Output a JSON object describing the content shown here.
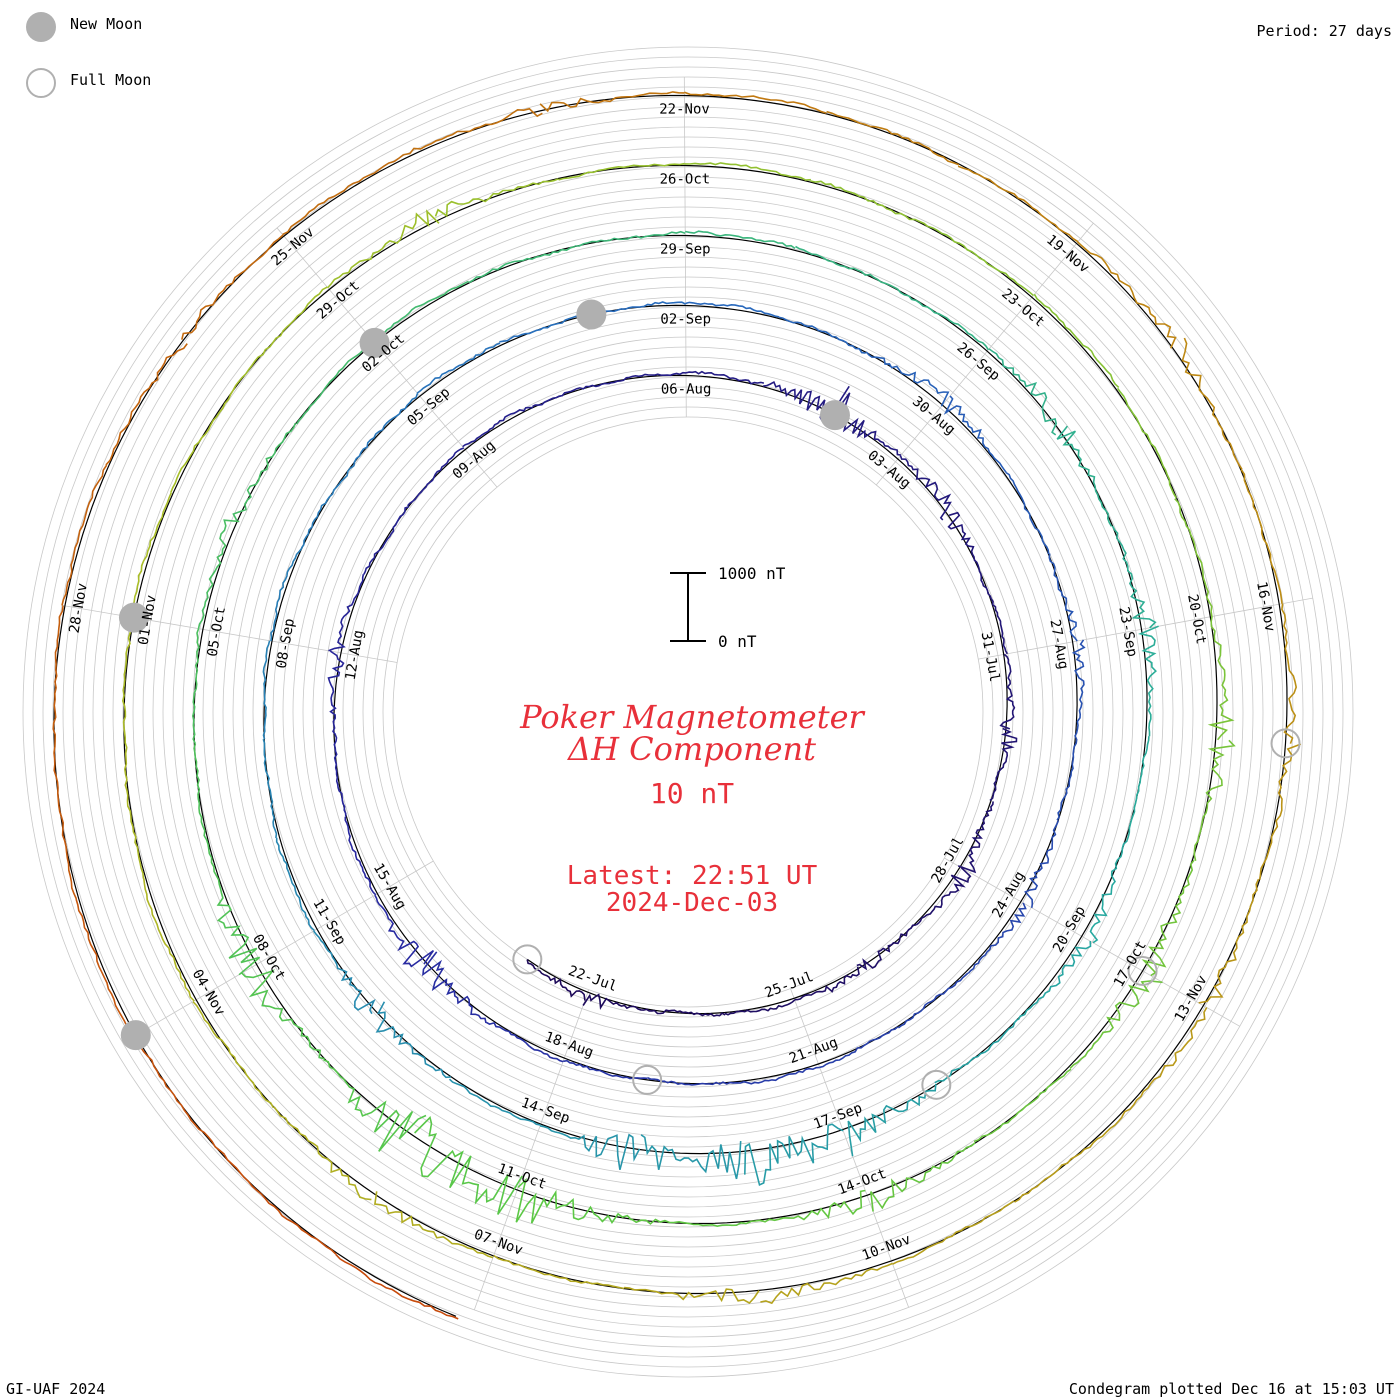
{
  "legend": {
    "new_moon_label": "New Moon",
    "full_moon_label": "Full Moon",
    "new_moon_color": "#b0b0b0",
    "full_moon_color": "#b0b0b0"
  },
  "header": {
    "period": "Period: 27 days"
  },
  "footer": {
    "credit": "GI-UAF 2024",
    "plotted": "Condegram plotted Dec 16 at 15:03 UT"
  },
  "center": {
    "title_line1": "Poker Magnetometer",
    "title_line2": "ΔH Component",
    "scale_value": "10 nT",
    "latest_line1": "Latest: 22:51 UT",
    "latest_line2": "2024-Dec-03",
    "scale_bar_top": "1000 nT",
    "scale_bar_bottom": "0 nT",
    "title_color": "#e8303a"
  },
  "chart_data": {
    "type": "line",
    "subtype": "condegram spiral (polar time series)",
    "title": "Poker Magnetometer ΔH Component",
    "station": "Poker Magnetometer",
    "component": "ΔH Component",
    "period_days": 27,
    "scale_bar_nT": [
      0,
      1000
    ],
    "start_date": "2024-07-21",
    "end_date": "2024-12-03",
    "latest": "2024-Dec-03 22:51 UT",
    "date_ticks": [
      {
        "label": "22-Jul",
        "date": "2024-07-22"
      },
      {
        "label": "25-Jul",
        "date": "2024-07-25"
      },
      {
        "label": "28-Jul",
        "date": "2024-07-28"
      },
      {
        "label": "31-Jul",
        "date": "2024-07-31"
      },
      {
        "label": "03-Aug",
        "date": "2024-08-03"
      },
      {
        "label": "06-Aug",
        "date": "2024-08-06"
      },
      {
        "label": "09-Aug",
        "date": "2024-08-09"
      },
      {
        "label": "12-Aug",
        "date": "2024-08-12"
      },
      {
        "label": "15-Aug",
        "date": "2024-08-15"
      },
      {
        "label": "18-Aug",
        "date": "2024-08-18"
      },
      {
        "label": "21-Aug",
        "date": "2024-08-21"
      },
      {
        "label": "24-Aug",
        "date": "2024-08-24"
      },
      {
        "label": "27-Aug",
        "date": "2024-08-27"
      },
      {
        "label": "30-Aug",
        "date": "2024-08-30"
      },
      {
        "label": "02-Sep",
        "date": "2024-09-02"
      },
      {
        "label": "05-Sep",
        "date": "2024-09-05"
      },
      {
        "label": "08-Sep",
        "date": "2024-09-08"
      },
      {
        "label": "11-Sep",
        "date": "2024-09-11"
      },
      {
        "label": "14-Sep",
        "date": "2024-09-14"
      },
      {
        "label": "17-Sep",
        "date": "2024-09-17"
      },
      {
        "label": "20-Sep",
        "date": "2024-09-20"
      },
      {
        "label": "23-Sep",
        "date": "2024-09-23"
      },
      {
        "label": "26-Sep",
        "date": "2024-09-26"
      },
      {
        "label": "29-Sep",
        "date": "2024-09-29"
      },
      {
        "label": "02-Oct",
        "date": "2024-10-02"
      },
      {
        "label": "05-Oct",
        "date": "2024-10-05"
      },
      {
        "label": "08-Oct",
        "date": "2024-10-08"
      },
      {
        "label": "11-Oct",
        "date": "2024-10-11"
      },
      {
        "label": "14-Oct",
        "date": "2024-10-14"
      },
      {
        "label": "17-Oct",
        "date": "2024-10-17"
      },
      {
        "label": "20-Oct",
        "date": "2024-10-20"
      },
      {
        "label": "23-Oct",
        "date": "2024-10-23"
      },
      {
        "label": "26-Oct",
        "date": "2024-10-26"
      },
      {
        "label": "29-Oct",
        "date": "2024-10-29"
      },
      {
        "label": "01-Nov",
        "date": "2024-11-01"
      },
      {
        "label": "04-Nov",
        "date": "2024-11-04"
      },
      {
        "label": "07-Nov",
        "date": "2024-11-07"
      },
      {
        "label": "10-Nov",
        "date": "2024-11-10"
      },
      {
        "label": "13-Nov",
        "date": "2024-11-13"
      },
      {
        "label": "16-Nov",
        "date": "2024-11-16"
      },
      {
        "label": "19-Nov",
        "date": "2024-11-19"
      },
      {
        "label": "22-Nov",
        "date": "2024-11-22"
      },
      {
        "label": "25-Nov",
        "date": "2024-11-25"
      },
      {
        "label": "28-Nov",
        "date": "2024-11-28"
      }
    ],
    "new_moons": [
      "2024-08-04",
      "2024-09-03",
      "2024-10-02",
      "2024-11-01",
      "2024-12-01"
    ],
    "full_moons": [
      "2024-07-21",
      "2024-08-19",
      "2024-09-18",
      "2024-10-17",
      "2024-11-15"
    ],
    "disturbances_nT": [
      {
        "date": "2024-07-22",
        "value": 200
      },
      {
        "date": "2024-07-26",
        "value": 180
      },
      {
        "date": "2024-07-28",
        "value": 250
      },
      {
        "date": "2024-07-30",
        "value": 200
      },
      {
        "date": "2024-08-02",
        "value": 300
      },
      {
        "date": "2024-08-04",
        "value": 450
      },
      {
        "date": "2024-08-12",
        "value": 180
      },
      {
        "date": "2024-08-16",
        "value": 420
      },
      {
        "date": "2024-08-24",
        "value": 160
      },
      {
        "date": "2024-08-27",
        "value": 130
      },
      {
        "date": "2024-08-30",
        "value": 250
      },
      {
        "date": "2024-09-12",
        "value": 300
      },
      {
        "date": "2024-09-15",
        "value": 500
      },
      {
        "date": "2024-09-16",
        "value": 600
      },
      {
        "date": "2024-09-17",
        "value": 500
      },
      {
        "date": "2024-09-20",
        "value": 220
      },
      {
        "date": "2024-09-23",
        "value": 230
      },
      {
        "date": "2024-09-25",
        "value": 300
      },
      {
        "date": "2024-10-04",
        "value": 150
      },
      {
        "date": "2024-10-08",
        "value": 450
      },
      {
        "date": "2024-10-10",
        "value": 800
      },
      {
        "date": "2024-10-11",
        "value": 600
      },
      {
        "date": "2024-10-14",
        "value": 260
      },
      {
        "date": "2024-10-17",
        "value": 300
      },
      {
        "date": "2024-10-19",
        "value": 280
      },
      {
        "date": "2024-10-28",
        "value": 200
      },
      {
        "date": "2024-11-06",
        "value": 200
      },
      {
        "date": "2024-11-09",
        "value": 220
      },
      {
        "date": "2024-11-13",
        "value": 200
      },
      {
        "date": "2024-11-15",
        "value": 200
      },
      {
        "date": "2024-11-18",
        "value": 180
      },
      {
        "date": "2024-11-23",
        "value": 150
      },
      {
        "date": "2024-11-26",
        "value": 130
      }
    ],
    "grid": true
  }
}
